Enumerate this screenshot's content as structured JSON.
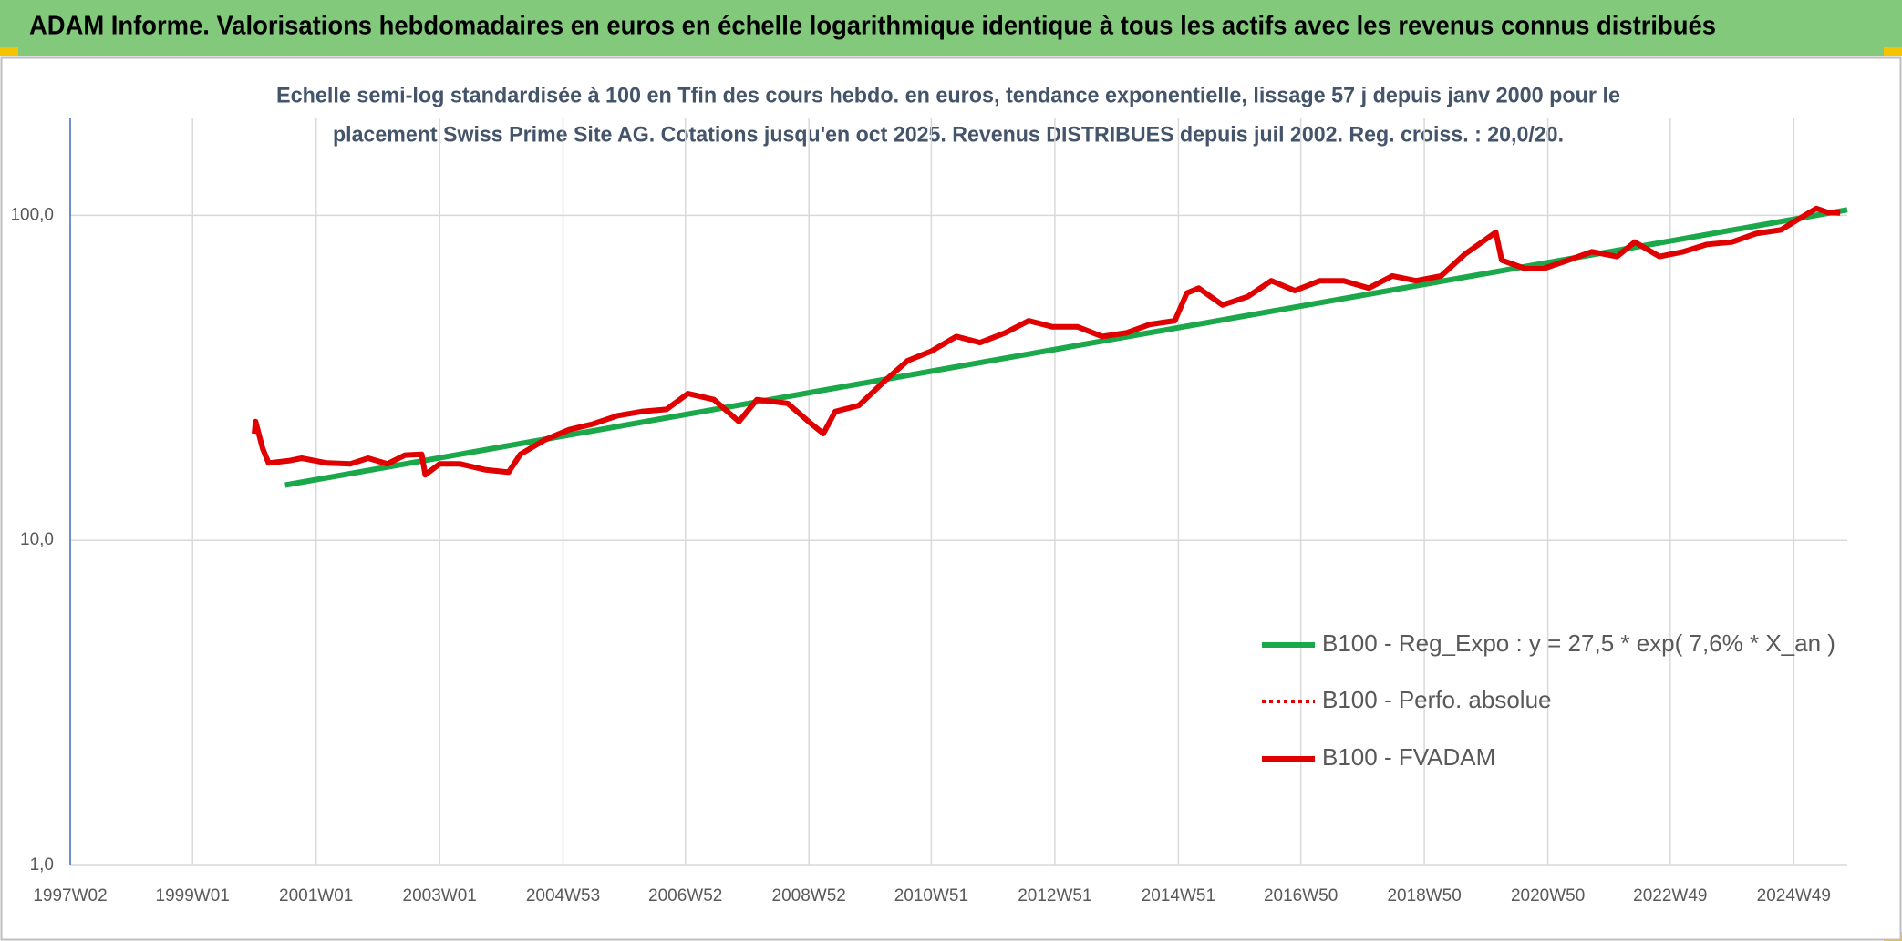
{
  "chart_data": {
    "type": "line",
    "title": "ADAM Informe. Valorisations hebdomadaires en euros en échelle logarithmique identique à tous les actifs avec les revenus connus distribués",
    "subtitle": [
      "Echelle semi-log standardisée à 100 en Tfin des cours hebdo. en euros, tendance exponentielle, lissage 57 j depuis janv 2000 pour le",
      "placement Swiss Prime Site AG. Cotations jusqu'en oct 2025. Revenus DISTRIBUES depuis juil 2002. Reg. croiss. : 20,0/20."
    ],
    "log_y": true,
    "grid": true,
    "legend": "right",
    "xlim": [
      "1997W02",
      "2025W42"
    ],
    "xticks": [
      "1997W02",
      "1999W01",
      "2001W01",
      "2003W01",
      "2004W53",
      "2006W52",
      "2008W52",
      "2010W51",
      "2012W51",
      "2014W51",
      "2016W50",
      "2018W50",
      "2020W50",
      "2022W49",
      "2024W49"
    ],
    "ylim": [
      1,
      200
    ],
    "yticks": [
      {
        "value": 1,
        "label": "1,0"
      },
      {
        "value": 10,
        "label": "10,0"
      },
      {
        "value": 100,
        "label": "100,0"
      }
    ],
    "series": [
      {
        "name": "B100 - Reg_Expo : y = 27,5 * exp( 7,6% *  X_an )",
        "color": "#1aa84a",
        "style": "solid",
        "x": [
          "2000W27",
          "2025W42"
        ],
        "values": [
          14.8,
          104
        ]
      },
      {
        "name": "B100 - Perfo. absolue",
        "color": "#e00000",
        "style": "dotted",
        "x": [
          "2000W01",
          "2000W02",
          "2000W08",
          "2000W13",
          "2000W31",
          "2000W41",
          "2001W10",
          "2001W30",
          "2001W45",
          "2002W09",
          "2002W24",
          "2002W38",
          "2002W41",
          "2003W01",
          "2003W18",
          "2003W39",
          "2004W07",
          "2004W17",
          "2004W38",
          "2005W06",
          "2005W26",
          "2005W47",
          "2006W15",
          "2006W36",
          "2007W02",
          "2007W24",
          "2007W45",
          "2008W08",
          "2008W34",
          "2009W02",
          "2009W12",
          "2009W22",
          "2009W42",
          "2010W11",
          "2010W31",
          "2010W51",
          "2011W20",
          "2011W40",
          "2012W09",
          "2012W29",
          "2012W49",
          "2013W18",
          "2013W39",
          "2014W07",
          "2014W27",
          "2014W48",
          "2015W06",
          "2015W16",
          "2015W36",
          "2016W05",
          "2016W25",
          "2016W45",
          "2017W14",
          "2017W34",
          "2018W03",
          "2018W23",
          "2018W43",
          "2019W12",
          "2019W32",
          "2020W06",
          "2020W11",
          "2020W31",
          "2020W46",
          "2021W15",
          "2021W35",
          "2022W04",
          "2022W19",
          "2022W40",
          "2023W08",
          "2023W28",
          "2023W49",
          "2024W17",
          "2024W38",
          "2025W06",
          "2025W16",
          "2025W26",
          "2025W36"
        ],
        "values": [
          21.3,
          23.2,
          19.2,
          17.3,
          17.6,
          17.9,
          17.3,
          17.2,
          17.9,
          17.2,
          18.3,
          18.4,
          15.9,
          17.2,
          17.2,
          16.5,
          16.2,
          18.4,
          20.4,
          21.9,
          22.8,
          24.2,
          24.9,
          25.3,
          28.3,
          27.1,
          23.2,
          27.1,
          26.4,
          22.8,
          21.3,
          24.9,
          26.0,
          30.8,
          35.7,
          38.2,
          42.4,
          40.6,
          43.5,
          47.4,
          45.4,
          45.4,
          42.4,
          43.5,
          46.2,
          47.4,
          57.7,
          59.7,
          53.0,
          56.2,
          62.9,
          58.7,
          62.9,
          62.9,
          59.7,
          65.1,
          62.9,
          65.1,
          75.9,
          88.7,
          72.8,
          68.5,
          68.5,
          72.8,
          77.3,
          74.7,
          82.8,
          74.7,
          77.3,
          81.4,
          82.8,
          87.9,
          90.2,
          100,
          105,
          102,
          101.7
        ]
      },
      {
        "name": "B100 - FVADAM",
        "color": "#e00000",
        "style": "solid",
        "x": [
          "2000W01",
          "2000W02",
          "2000W08",
          "2000W13",
          "2000W31",
          "2000W41",
          "2001W10",
          "2001W30",
          "2001W45",
          "2002W09",
          "2002W24",
          "2002W38",
          "2002W41",
          "2003W01",
          "2003W18",
          "2003W39",
          "2004W07",
          "2004W17",
          "2004W38",
          "2005W06",
          "2005W26",
          "2005W47",
          "2006W15",
          "2006W36",
          "2007W02",
          "2007W24",
          "2007W45",
          "2008W08",
          "2008W34",
          "2009W02",
          "2009W12",
          "2009W22",
          "2009W42",
          "2010W11",
          "2010W31",
          "2010W51",
          "2011W20",
          "2011W40",
          "2012W09",
          "2012W29",
          "2012W49",
          "2013W18",
          "2013W39",
          "2014W07",
          "2014W27",
          "2014W48",
          "2015W06",
          "2015W16",
          "2015W36",
          "2016W05",
          "2016W25",
          "2016W45",
          "2017W14",
          "2017W34",
          "2018W03",
          "2018W23",
          "2018W43",
          "2019W12",
          "2019W32",
          "2020W06",
          "2020W11",
          "2020W31",
          "2020W46",
          "2021W15",
          "2021W35",
          "2022W04",
          "2022W19",
          "2022W40",
          "2023W08",
          "2023W28",
          "2023W49",
          "2024W17",
          "2024W38",
          "2025W06",
          "2025W16",
          "2025W26",
          "2025W36"
        ],
        "values": [
          21.3,
          23.2,
          19.2,
          17.3,
          17.6,
          17.9,
          17.3,
          17.2,
          17.9,
          17.2,
          18.3,
          18.4,
          15.9,
          17.2,
          17.2,
          16.5,
          16.2,
          18.4,
          20.4,
          21.9,
          22.8,
          24.2,
          24.9,
          25.3,
          28.3,
          27.1,
          23.2,
          27.1,
          26.4,
          22.8,
          21.3,
          24.9,
          26.0,
          30.8,
          35.7,
          38.2,
          42.4,
          40.6,
          43.5,
          47.4,
          45.4,
          45.4,
          42.4,
          43.5,
          46.2,
          47.4,
          57.7,
          59.7,
          53.0,
          56.2,
          62.9,
          58.7,
          62.9,
          62.9,
          59.7,
          65.1,
          62.9,
          65.1,
          75.9,
          88.7,
          72.8,
          68.5,
          68.5,
          72.8,
          77.3,
          74.7,
          82.8,
          74.7,
          77.3,
          81.4,
          82.8,
          87.9,
          90.2,
          100,
          105,
          102,
          101.7
        ]
      }
    ]
  }
}
